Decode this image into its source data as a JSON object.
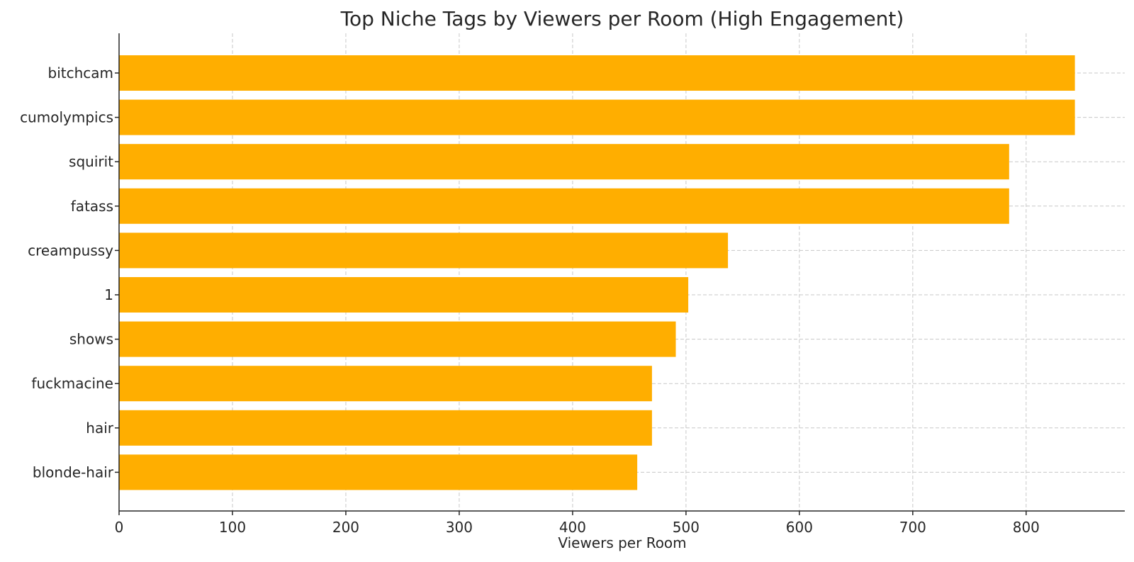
{
  "chart_data": {
    "type": "bar",
    "orientation": "horizontal",
    "title": "Top Niche Tags by Viewers per Room (High Engagement)",
    "xlabel": "Viewers per Room",
    "ylabel": "",
    "categories": [
      "bitchcam",
      "cumolympics",
      "squirit",
      "fatass",
      "creampussy",
      "1",
      "shows",
      "fuckmacine",
      "hair",
      "blonde-hair"
    ],
    "values": [
      843,
      843,
      785,
      785,
      537,
      502,
      491,
      470,
      470,
      457
    ],
    "xlim": [
      0,
      887
    ],
    "xticks": [
      0,
      100,
      200,
      300,
      400,
      500,
      600,
      700,
      800
    ],
    "grid": true,
    "bar_color": "#ffae00"
  }
}
